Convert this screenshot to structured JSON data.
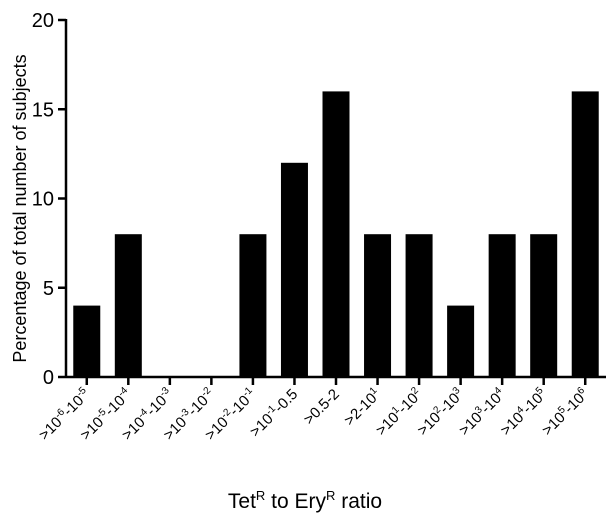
{
  "chart_data": {
    "type": "bar",
    "categories": [
      {
        "label": "",
        "parts": [
          [
            ">10",
            ""
          ],
          [
            "-6",
            "sup"
          ],
          [
            "-10",
            ""
          ],
          [
            "-5",
            "sup"
          ]
        ]
      },
      {
        "label": "",
        "parts": [
          [
            ">10",
            ""
          ],
          [
            "-5",
            "sup"
          ],
          [
            "-10",
            ""
          ],
          [
            "-4",
            "sup"
          ]
        ]
      },
      {
        "label": "",
        "parts": [
          [
            ">10",
            ""
          ],
          [
            "-4",
            "sup"
          ],
          [
            "-10",
            ""
          ],
          [
            "-3",
            "sup"
          ]
        ]
      },
      {
        "label": "",
        "parts": [
          [
            ">10",
            ""
          ],
          [
            "-3",
            "sup"
          ],
          [
            "-10",
            ""
          ],
          [
            "-2",
            "sup"
          ]
        ]
      },
      {
        "label": "",
        "parts": [
          [
            ">10",
            ""
          ],
          [
            "-2",
            "sup"
          ],
          [
            "-10",
            ""
          ],
          [
            "-1",
            "sup"
          ]
        ]
      },
      {
        "label": "",
        "parts": [
          [
            ">10",
            ""
          ],
          [
            "-1",
            "sup"
          ],
          [
            "-0.5",
            ""
          ]
        ]
      },
      {
        "label": "",
        "parts": [
          [
            ">0.5-2",
            ""
          ]
        ]
      },
      {
        "label": "",
        "parts": [
          [
            ">2-10",
            ""
          ],
          [
            "1",
            "sup"
          ]
        ]
      },
      {
        "label": "",
        "parts": [
          [
            ">10",
            ""
          ],
          [
            "1",
            "sup"
          ],
          [
            "-10",
            ""
          ],
          [
            "2",
            "sup"
          ]
        ]
      },
      {
        "label": "",
        "parts": [
          [
            ">10",
            ""
          ],
          [
            "2",
            "sup"
          ],
          [
            "-10",
            ""
          ],
          [
            "3",
            "sup"
          ]
        ]
      },
      {
        "label": "",
        "parts": [
          [
            ">10",
            ""
          ],
          [
            "3",
            "sup"
          ],
          [
            "-10",
            ""
          ],
          [
            "4",
            "sup"
          ]
        ]
      },
      {
        "label": "",
        "parts": [
          [
            ">10",
            ""
          ],
          [
            "4",
            "sup"
          ],
          [
            "-10",
            ""
          ],
          [
            "5",
            "sup"
          ]
        ]
      },
      {
        "label": "",
        "parts": [
          [
            ">10",
            ""
          ],
          [
            "5",
            "sup"
          ],
          [
            "-10",
            ""
          ],
          [
            "6",
            "sup"
          ]
        ]
      }
    ],
    "values": [
      4,
      8,
      0,
      0,
      8,
      12,
      16,
      8,
      8,
      4,
      8,
      8,
      16
    ],
    "title": "",
    "xlabel_parts": [
      [
        "Tet",
        ""
      ],
      [
        "R",
        "sup"
      ],
      [
        " to Ery",
        ""
      ],
      [
        "R",
        "sup"
      ],
      [
        " ratio",
        ""
      ]
    ],
    "ylabel": "Percentage of total number of subjects",
    "ylim": [
      0,
      20
    ],
    "yticks": [
      0,
      5,
      10,
      15,
      20
    ],
    "grid": false,
    "legend": "none",
    "bar_color": "#000000"
  }
}
